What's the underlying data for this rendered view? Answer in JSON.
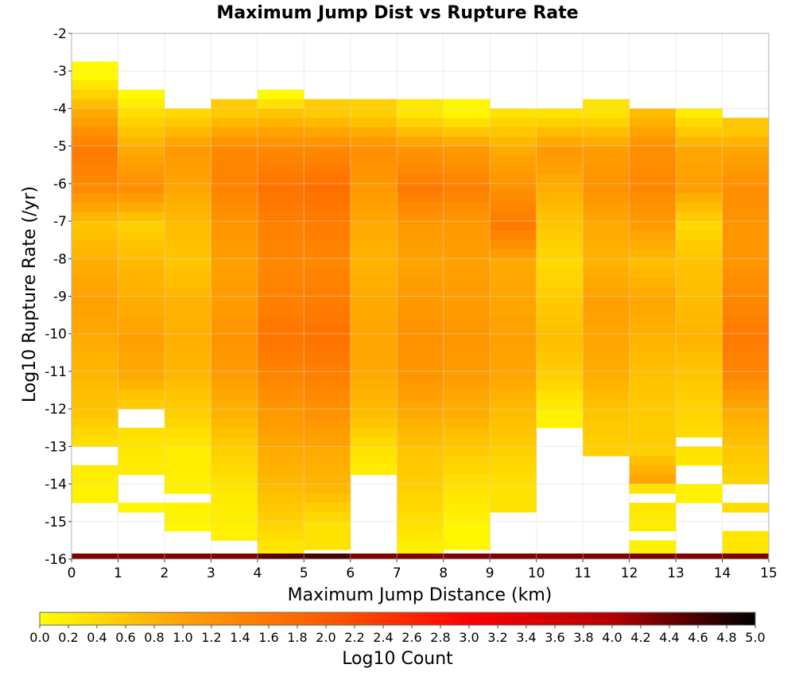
{
  "chart_data": {
    "type": "heatmap",
    "title": "Maximum Jump Dist vs Rupture Rate",
    "xlabel": "Maximum Jump Distance (km)",
    "ylabel": "Log10 Rupture Rate (/yr)",
    "xlim": [
      0,
      15
    ],
    "ylim": [
      -16,
      -2
    ],
    "x_ticks": [
      "0",
      "1",
      "2",
      "3",
      "4",
      "5",
      "6",
      "7",
      "8",
      "9",
      "10",
      "11",
      "12",
      "13",
      "14",
      "15"
    ],
    "y_ticks": [
      "-2",
      "-3",
      "-4",
      "-5",
      "-6",
      "-7",
      "-8",
      "-9",
      "-10",
      "-11",
      "-12",
      "-13",
      "-14",
      "-15",
      "-16"
    ],
    "x_bin_width": 1,
    "y_bin_height": 0.25,
    "grid": true,
    "colorbar": {
      "label": "Log10 Count",
      "range": [
        0,
        5
      ],
      "ticks": [
        "0.0",
        "0.2",
        "0.4",
        "0.6",
        "0.8",
        "1.0",
        "1.2",
        "1.4",
        "1.6",
        "1.8",
        "2.0",
        "2.2",
        "2.4",
        "2.6",
        "2.8",
        "3.0",
        "3.2",
        "3.4",
        "3.6",
        "3.8",
        "4.0",
        "4.2",
        "4.4",
        "4.6",
        "4.8",
        "5.0"
      ],
      "colors": [
        "#ffff00",
        "#ffa000",
        "#ff5a00",
        "#ff0000",
        "#b40000",
        "#000000"
      ]
    },
    "column_profiles": [
      {
        "x": 0,
        "top": -2.75,
        "bottom": -14.25,
        "gaps": [
          [
            -13.0,
            -13.25
          ]
        ],
        "intensity": [
          [
            -3,
            0.05
          ],
          [
            -4,
            0.9
          ],
          [
            -5,
            1.55
          ],
          [
            -6,
            1.3
          ],
          [
            -7,
            0.6
          ],
          [
            -8,
            0.85
          ],
          [
            -9,
            1.0
          ],
          [
            -10,
            0.9
          ],
          [
            -11,
            0.75
          ],
          [
            -12,
            0.6
          ],
          [
            -13,
            0.25
          ],
          [
            -14,
            0.15
          ]
        ]
      },
      {
        "x": 1,
        "top": -3.5,
        "bottom": -14.5,
        "gaps": [
          [
            -12.0,
            -12.25
          ],
          [
            -13.75,
            -14.25
          ]
        ],
        "intensity": [
          [
            -3.5,
            0.05
          ],
          [
            -4,
            0.35
          ],
          [
            -5,
            0.9
          ],
          [
            -6,
            1.25
          ],
          [
            -7,
            0.5
          ],
          [
            -8,
            0.75
          ],
          [
            -9,
            0.85
          ],
          [
            -10,
            1.0
          ],
          [
            -11,
            0.9
          ],
          [
            -12,
            0.4
          ],
          [
            -13,
            0.25
          ],
          [
            -14.5,
            0.1
          ]
        ]
      },
      {
        "x": 2,
        "top": -4.0,
        "bottom": -15.0,
        "gaps": [
          [
            -14.25,
            -14.25
          ]
        ],
        "intensity": [
          [
            -4,
            0.4
          ],
          [
            -5,
            1.1
          ],
          [
            -6,
            0.95
          ],
          [
            -7,
            0.7
          ],
          [
            -8,
            0.6
          ],
          [
            -9,
            0.8
          ],
          [
            -10,
            0.85
          ],
          [
            -11,
            0.75
          ],
          [
            -12,
            0.5
          ],
          [
            -13,
            0.2
          ],
          [
            -14,
            0.15
          ],
          [
            -15,
            0.1
          ]
        ]
      },
      {
        "x": 3,
        "top": -3.75,
        "bottom": -15.25,
        "gaps": [],
        "intensity": [
          [
            -4,
            0.55
          ],
          [
            -5,
            1.35
          ],
          [
            -6,
            1.4
          ],
          [
            -7,
            1.15
          ],
          [
            -8,
            1.0
          ],
          [
            -9,
            1.05
          ],
          [
            -10,
            1.2
          ],
          [
            -11,
            1.05
          ],
          [
            -12,
            0.8
          ],
          [
            -13,
            0.5
          ],
          [
            -14,
            0.25
          ],
          [
            -15,
            0.15
          ]
        ]
      },
      {
        "x": 4,
        "top": -3.5,
        "bottom": -16.0,
        "gaps": [],
        "intensity": [
          [
            -3.5,
            0.05
          ],
          [
            -4,
            0.6
          ],
          [
            -5,
            1.35
          ],
          [
            -6,
            1.65
          ],
          [
            -7,
            1.45
          ],
          [
            -8,
            1.35
          ],
          [
            -9,
            1.45
          ],
          [
            -10,
            1.6
          ],
          [
            -11,
            1.4
          ],
          [
            -12,
            1.1
          ],
          [
            -13,
            0.9
          ],
          [
            -14,
            0.7
          ],
          [
            -15,
            0.45
          ],
          [
            -16,
            0.1
          ]
        ]
      },
      {
        "x": 5,
        "top": -3.75,
        "bottom": -15.5,
        "gaps": [],
        "intensity": [
          [
            -4,
            0.55
          ],
          [
            -5,
            1.35
          ],
          [
            -6,
            1.7
          ],
          [
            -7,
            1.5
          ],
          [
            -8,
            1.35
          ],
          [
            -9,
            1.5
          ],
          [
            -10,
            1.65
          ],
          [
            -11,
            1.45
          ],
          [
            -12,
            1.2
          ],
          [
            -13,
            0.9
          ],
          [
            -14,
            0.75
          ],
          [
            -15,
            0.3
          ]
        ]
      },
      {
        "x": 6,
        "top": -3.75,
        "bottom": -13.5,
        "gaps": [],
        "intensity": [
          [
            -4,
            0.5
          ],
          [
            -5,
            1.25
          ],
          [
            -6,
            1.1
          ],
          [
            -7,
            0.9
          ],
          [
            -8,
            0.8
          ],
          [
            -9,
            0.9
          ],
          [
            -10,
            0.95
          ],
          [
            -11,
            0.9
          ],
          [
            -12,
            0.7
          ],
          [
            -13,
            0.3
          ],
          [
            -13.5,
            0.2
          ]
        ]
      },
      {
        "x": 7,
        "top": -3.75,
        "bottom": -16.0,
        "gaps": [],
        "intensity": [
          [
            -4,
            0.25
          ],
          [
            -5,
            1.15
          ],
          [
            -6,
            1.55
          ],
          [
            -7,
            1.1
          ],
          [
            -8,
            0.95
          ],
          [
            -9,
            1.1
          ],
          [
            -10,
            1.2
          ],
          [
            -11,
            1.15
          ],
          [
            -12,
            0.9
          ],
          [
            -13,
            0.6
          ],
          [
            -14,
            0.5
          ],
          [
            -15,
            0.3
          ],
          [
            -16,
            0.05
          ]
        ]
      },
      {
        "x": 8,
        "top": -3.75,
        "bottom": -15.5,
        "gaps": [],
        "intensity": [
          [
            -4,
            0.1
          ],
          [
            -5,
            1.1
          ],
          [
            -6,
            1.45
          ],
          [
            -7,
            1.1
          ],
          [
            -8,
            1.0
          ],
          [
            -9,
            1.05
          ],
          [
            -10,
            1.15
          ],
          [
            -11,
            1.05
          ],
          [
            -12,
            0.85
          ],
          [
            -13,
            0.55
          ],
          [
            -14,
            0.3
          ],
          [
            -15,
            0.1
          ]
        ]
      },
      {
        "x": 9,
        "top": -4.0,
        "bottom": -14.5,
        "gaps": [],
        "intensity": [
          [
            -4,
            0.3
          ],
          [
            -5,
            0.9
          ],
          [
            -6,
            1.2
          ],
          [
            -7,
            1.55
          ],
          [
            -8,
            0.9
          ],
          [
            -9,
            0.95
          ],
          [
            -10,
            1.0
          ],
          [
            -11,
            0.95
          ],
          [
            -12,
            0.7
          ],
          [
            -13,
            0.5
          ],
          [
            -14,
            0.3
          ]
        ]
      },
      {
        "x": 10,
        "top": -4.0,
        "bottom": -12.25,
        "gaps": [],
        "intensity": [
          [
            -4,
            0.3
          ],
          [
            -5,
            1.1
          ],
          [
            -6,
            0.85
          ],
          [
            -7,
            0.6
          ],
          [
            -8,
            0.4
          ],
          [
            -9,
            0.55
          ],
          [
            -10,
            0.7
          ],
          [
            -11,
            0.5
          ],
          [
            -12,
            0.15
          ]
        ]
      },
      {
        "x": 11,
        "top": -3.75,
        "bottom": -13.0,
        "gaps": [],
        "intensity": [
          [
            -4,
            0.3
          ],
          [
            -5,
            1.05
          ],
          [
            -6,
            1.2
          ],
          [
            -7,
            0.9
          ],
          [
            -8,
            0.8
          ],
          [
            -9,
            1.0
          ],
          [
            -10,
            0.95
          ],
          [
            -11,
            0.85
          ],
          [
            -12,
            0.6
          ],
          [
            -13,
            0.5
          ]
        ]
      },
      {
        "x": 12,
        "top": -4.0,
        "bottom": -15.75,
        "gaps": [
          [
            -14.25,
            -14.25
          ],
          [
            -15.25,
            -15.25
          ]
        ],
        "intensity": [
          [
            -4,
            0.7
          ],
          [
            -5,
            1.25
          ],
          [
            -6,
            1.35
          ],
          [
            -7,
            1.05
          ],
          [
            -8,
            0.7
          ],
          [
            -9,
            0.95
          ],
          [
            -10,
            0.8
          ],
          [
            -11,
            0.65
          ],
          [
            -12,
            0.55
          ],
          [
            -13,
            0.5
          ],
          [
            -13.75,
            0.95
          ],
          [
            -14,
            0.3
          ],
          [
            -15,
            0.2
          ],
          [
            -15.75,
            0.1
          ]
        ]
      },
      {
        "x": 13,
        "top": -4.0,
        "bottom": -14.25,
        "gaps": [
          [
            -12.75,
            -12.75
          ],
          [
            -13.5,
            -13.75
          ]
        ],
        "intensity": [
          [
            -4,
            0.2
          ],
          [
            -5,
            0.95
          ],
          [
            -6,
            1.0
          ],
          [
            -7,
            0.4
          ],
          [
            -8,
            0.65
          ],
          [
            -9,
            0.7
          ],
          [
            -10,
            0.8
          ],
          [
            -11,
            0.6
          ],
          [
            -12,
            0.45
          ],
          [
            -13,
            0.3
          ],
          [
            -14,
            0.15
          ]
        ]
      },
      {
        "x": 14,
        "top": -4.25,
        "bottom": -16.0,
        "gaps": [
          [
            -14.0,
            -14.25
          ],
          [
            -14.75,
            -15.0
          ]
        ],
        "intensity": [
          [
            -4.5,
            0.6
          ],
          [
            -5,
            0.95
          ],
          [
            -6,
            1.25
          ],
          [
            -7,
            1.15
          ],
          [
            -8,
            1.15
          ],
          [
            -9,
            1.35
          ],
          [
            -10,
            1.55
          ],
          [
            -11,
            1.35
          ],
          [
            -12,
            0.85
          ],
          [
            -13,
            0.6
          ],
          [
            -14,
            0.4
          ],
          [
            -15,
            0.3
          ],
          [
            -16,
            0.2
          ]
        ]
      }
    ],
    "bottom_row": {
      "y": -16.0,
      "intensity_by_column": [
        4.3,
        4.3,
        4.3,
        4.3,
        4.5,
        4.6,
        4.3,
        4.3,
        4.3,
        4.3,
        4.3,
        4.3,
        4.3,
        4.3,
        4.3
      ]
    }
  }
}
